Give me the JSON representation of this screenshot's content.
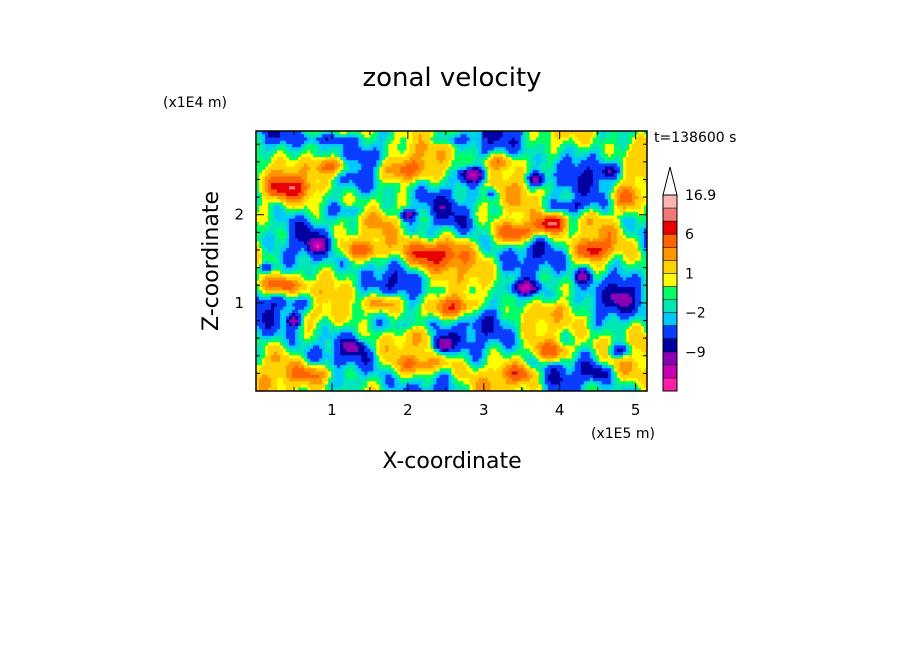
{
  "chart_data": {
    "type": "heatmap",
    "title": "zonal velocity",
    "xlabel": "X-coordinate",
    "ylabel": "Z-coordinate",
    "x_unit": "(x1E5 m)",
    "y_unit": "(x1E4 m)",
    "time_label": "t=138600 s",
    "xlim": [
      0,
      5.15
    ],
    "ylim": [
      0,
      2.95
    ],
    "x_ticks": [
      1,
      2,
      3,
      4,
      5
    ],
    "x_tick_labels": [
      "1",
      "2",
      "3",
      "4",
      "5"
    ],
    "y_ticks": [
      1,
      2
    ],
    "y_tick_labels": [
      "1",
      "2"
    ],
    "colorbar": {
      "levels": [
        -15,
        -12,
        -9,
        -6,
        -4,
        -2,
        -1,
        0,
        1,
        2,
        4,
        6,
        9,
        12,
        16.9
      ],
      "labels": [
        {
          "value": 16.9,
          "text": "16.9"
        },
        {
          "value": 6,
          "text": "6"
        },
        {
          "value": 1,
          "text": "1"
        },
        {
          "value": -2,
          "text": "−2"
        },
        {
          "value": -9,
          "text": "−9"
        }
      ],
      "colors": [
        "#ff1fa5",
        "#c800b4",
        "#8c00b4",
        "#0000a0",
        "#0a3cff",
        "#00c8ff",
        "#00e6b4",
        "#00ff64",
        "#ffff00",
        "#ffd200",
        "#ff9600",
        "#ff6400",
        "#e60000",
        "#f07878",
        "#ffb4b4"
      ],
      "extends_max": true
    },
    "features": [
      {
        "x": 2.45,
        "z": 0.53,
        "amp": -11,
        "rx": 0.13,
        "rz": 0.11
      },
      {
        "x": 2.85,
        "z": 2.45,
        "amp": -10,
        "rx": 0.16,
        "rz": 0.09
      },
      {
        "x": 0.49,
        "z": 0.8,
        "amp": -8,
        "rx": 0.09,
        "rz": 0.08
      },
      {
        "x": 3.55,
        "z": 1.17,
        "amp": -9,
        "rx": 0.2,
        "rz": 0.08
      },
      {
        "x": 4.8,
        "z": 0.45,
        "amp": -7,
        "rx": 0.15,
        "rz": 0.08
      },
      {
        "x": 3.7,
        "z": 2.4,
        "amp": -8,
        "rx": 0.12,
        "rz": 0.08
      },
      {
        "x": 4.3,
        "z": 1.3,
        "amp": -7,
        "rx": 0.1,
        "rz": 0.08
      },
      {
        "x": 0.8,
        "z": 1.65,
        "amp": -7,
        "rx": 0.12,
        "rz": 0.07
      },
      {
        "x": 2.0,
        "z": 2.0,
        "amp": -6,
        "rx": 0.1,
        "rz": 0.06
      },
      {
        "x": 3.1,
        "z": 2.25,
        "amp": -5,
        "rx": 0.08,
        "rz": 0.07
      },
      {
        "x": 0.15,
        "z": 1.4,
        "amp": -6,
        "rx": 0.1,
        "rz": 0.07
      },
      {
        "x": 1.3,
        "z": 0.5,
        "amp": -5,
        "rx": 0.12,
        "rz": 0.07
      },
      {
        "x": 4.5,
        "z": 0.2,
        "amp": -4,
        "rx": 0.2,
        "rz": 0.08
      },
      {
        "x": 2.3,
        "z": 1.55,
        "amp": 10,
        "rx": 0.35,
        "rz": 0.15
      },
      {
        "x": 3.45,
        "z": 1.8,
        "amp": 11,
        "rx": 0.25,
        "rz": 0.12
      },
      {
        "x": 3.9,
        "z": 1.9,
        "amp": 12,
        "rx": 0.18,
        "rz": 0.1
      },
      {
        "x": 2.6,
        "z": 0.95,
        "amp": 9,
        "rx": 0.3,
        "rz": 0.12
      },
      {
        "x": 4.45,
        "z": 1.6,
        "amp": 9,
        "rx": 0.18,
        "rz": 0.1
      },
      {
        "x": 0.4,
        "z": 2.3,
        "amp": 8,
        "rx": 0.3,
        "rz": 0.12
      },
      {
        "x": 1.0,
        "z": 2.55,
        "amp": 8,
        "rx": 0.25,
        "rz": 0.1
      },
      {
        "x": 1.9,
        "z": 2.5,
        "amp": 7,
        "rx": 0.3,
        "rz": 0.12
      },
      {
        "x": 0.3,
        "z": 1.2,
        "amp": 8,
        "rx": 0.25,
        "rz": 0.1
      },
      {
        "x": 1.7,
        "z": 1.0,
        "amp": 7,
        "rx": 0.25,
        "rz": 0.1
      },
      {
        "x": 0.8,
        "z": 0.2,
        "amp": 7,
        "rx": 0.3,
        "rz": 0.12
      },
      {
        "x": 3.9,
        "z": 0.45,
        "amp": 8,
        "rx": 0.3,
        "rz": 0.12
      },
      {
        "x": 3.5,
        "z": 0.2,
        "amp": 6,
        "rx": 0.25,
        "rz": 0.1
      },
      {
        "x": 1.4,
        "z": 1.6,
        "amp": 6,
        "rx": 0.3,
        "rz": 0.1
      },
      {
        "x": 4.9,
        "z": 2.2,
        "amp": 7,
        "rx": 0.2,
        "rz": 0.15
      },
      {
        "x": 2.2,
        "z": 0.3,
        "amp": 5,
        "rx": 0.3,
        "rz": 0.1
      },
      {
        "x": 3.2,
        "z": 2.6,
        "amp": 6,
        "rx": 0.2,
        "rz": 0.1
      },
      {
        "x": 0.6,
        "z": 1.0,
        "amp": -4,
        "rx": 0.35,
        "rz": 0.1
      },
      {
        "x": 2.0,
        "z": 0.75,
        "amp": -3,
        "rx": 0.4,
        "rz": 0.1
      },
      {
        "x": 3.8,
        "z": 1.05,
        "amp": -3,
        "rx": 0.35,
        "rz": 0.1
      },
      {
        "x": 1.3,
        "z": 2.05,
        "amp": -3,
        "rx": 0.3,
        "rz": 0.08
      },
      {
        "x": 4.2,
        "z": 2.1,
        "amp": -4,
        "rx": 0.25,
        "rz": 0.08
      },
      {
        "x": 0.9,
        "z": 2.85,
        "amp": -3,
        "rx": 0.4,
        "rz": 0.06
      },
      {
        "x": 2.5,
        "z": 2.85,
        "amp": -3,
        "rx": 0.3,
        "rz": 0.06
      },
      {
        "x": 4.8,
        "z": 1.05,
        "amp": -4,
        "rx": 0.15,
        "rz": 0.15
      },
      {
        "x": 4.65,
        "z": 2.5,
        "amp": -5,
        "rx": 0.12,
        "rz": 0.08
      }
    ]
  }
}
